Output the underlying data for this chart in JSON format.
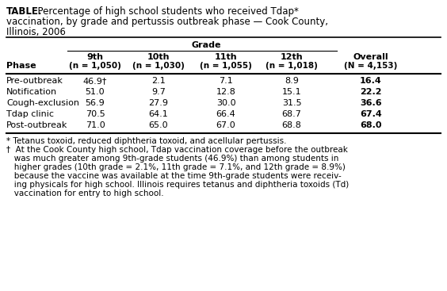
{
  "title_lines": [
    "TABLE.  Percentage of high school students who received Tdap*",
    "vaccination, by grade and pertussis outbreak phase — Cook County,",
    "Illinois, 2006"
  ],
  "grade_header": "Grade",
  "col_headers": [
    "9th",
    "10th",
    "11th",
    "12th",
    "Overall"
  ],
  "col_subheaders": [
    "(n = 1,050)",
    "(n = 1,030)",
    "(n = 1,055)",
    "(n = 1,018)",
    "(N = 4,153)"
  ],
  "row_label_header": "Phase",
  "rows": [
    {
      "phase": "Pre-outbreak",
      "values": [
        "46.9†",
        "2.1",
        "7.1",
        "8.9"
      ],
      "overall": "16.4",
      "overall_bold": true
    },
    {
      "phase": "Notification",
      "values": [
        "51.0",
        "9.7",
        "12.8",
        "15.1"
      ],
      "overall": "22.2",
      "overall_bold": true
    },
    {
      "phase": "Cough-exclusion",
      "values": [
        "56.9",
        "27.9",
        "30.0",
        "31.5"
      ],
      "overall": "36.6",
      "overall_bold": true
    },
    {
      "phase": "Tdap clinic",
      "values": [
        "70.5",
        "64.1",
        "66.4",
        "68.7"
      ],
      "overall": "67.4",
      "overall_bold": true
    },
    {
      "phase": "Post-outbreak",
      "values": [
        "71.0",
        "65.0",
        "67.0",
        "68.8"
      ],
      "overall": "68.0",
      "overall_bold": true
    }
  ],
  "footnotes": [
    "* Tetanus toxoid, reduced diphtheria toxoid, and acellular pertussis.",
    "†  At the Cook County high school, Tdap vaccination coverage before the outbreak",
    "   was much greater among 9th-grade students (46.9%) than among students in",
    "   higher grades (10th grade = 2.1%, 11th grade = 7.1%, and 12th grade = 8.9%)",
    "   because the vaccine was available at the time 9th-grade students were receiv-",
    "   ing physicals for high school. Illinois requires tetanus and diphtheria toxoids (Td)",
    "   vaccination for entry to high school."
  ],
  "bg_color": "#ffffff",
  "text_color": "#000000",
  "font_size_title": 8.5,
  "font_size_table": 8.0,
  "font_size_footnote": 7.5
}
